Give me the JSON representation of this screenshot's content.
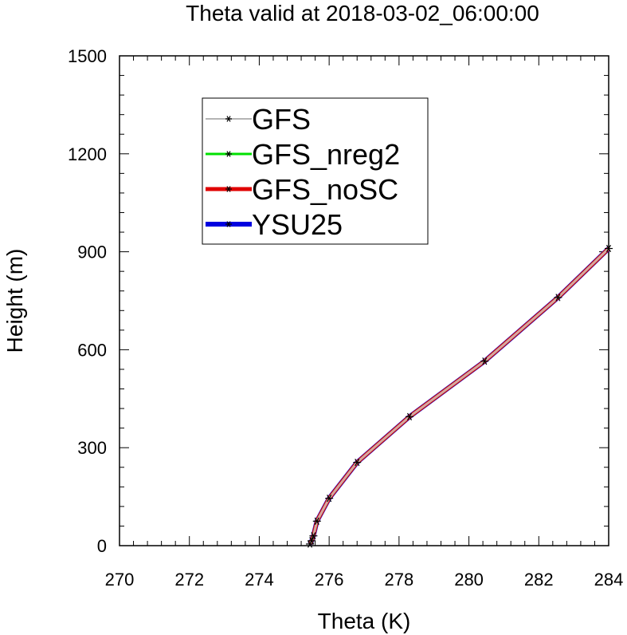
{
  "chart_data": {
    "type": "line",
    "title": "Theta valid at 2018-03-02_06:00:00",
    "xlabel": "Theta (K)",
    "ylabel": "Height (m)",
    "xlim": [
      270,
      284
    ],
    "ylim": [
      0,
      1500
    ],
    "xticks": [
      270,
      272,
      274,
      276,
      278,
      280,
      282,
      284
    ],
    "yticks": [
      0,
      300,
      600,
      900,
      1200,
      1500
    ],
    "xtick_labels": [
      "270",
      "272",
      "274",
      "276",
      "278",
      "280",
      "282",
      "284"
    ],
    "ytick_labels": [
      "0",
      "300",
      "600",
      "900",
      "1200",
      "1500"
    ],
    "legend_position": "top-left",
    "grid": false,
    "series": [
      {
        "name": "GFS",
        "color": "#b4b4b4",
        "marker": "asterisk",
        "x": [
          275.45,
          275.5,
          275.55,
          275.65,
          276.0,
          276.8,
          278.3,
          280.45,
          282.55,
          284.0
        ],
        "y": [
          5,
          15,
          30,
          75,
          145,
          255,
          395,
          565,
          760,
          910
        ]
      },
      {
        "name": "GFS_nreg2",
        "color": "#00e000",
        "marker": "asterisk",
        "x": [
          275.45,
          275.5,
          275.55,
          275.65,
          276.0,
          276.8,
          278.3,
          280.45,
          282.55,
          284.0
        ],
        "y": [
          5,
          15,
          30,
          75,
          145,
          255,
          395,
          565,
          760,
          910
        ]
      },
      {
        "name": "GFS_noSC",
        "color": "#e00000",
        "marker": "asterisk",
        "x": [
          275.45,
          275.5,
          275.55,
          275.65,
          276.0,
          276.8,
          278.3,
          280.45,
          282.55,
          284.0
        ],
        "y": [
          5,
          15,
          30,
          75,
          145,
          255,
          395,
          565,
          760,
          910
        ]
      },
      {
        "name": "YSU25",
        "color": "#0000e0",
        "marker": "asterisk",
        "x": [
          275.45,
          275.5,
          275.55,
          275.65,
          276.0,
          276.8,
          278.3,
          280.45,
          282.55,
          284.0
        ],
        "y": [
          5,
          15,
          30,
          75,
          145,
          255,
          395,
          565,
          760,
          910
        ]
      }
    ]
  }
}
